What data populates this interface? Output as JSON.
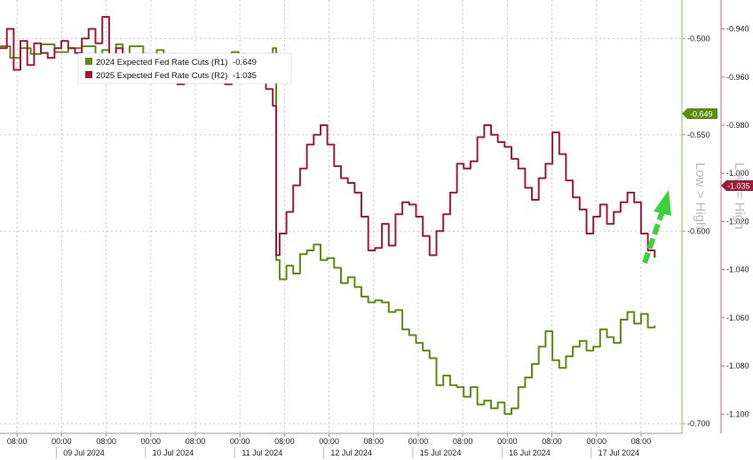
{
  "chart_data": {
    "type": "line",
    "title": "",
    "legend": {
      "placement": "top-left",
      "entries": [
        {
          "label": "2024 Expected Fed Rate Cuts (R1)",
          "value": "-0.649",
          "color": "#5a8c0e"
        },
        {
          "label": "2025 Expected Fed Rate Cuts (R2)",
          "value": "-1.035",
          "color": "#a3193a"
        }
      ]
    },
    "x_axis": {
      "time_row": [
        "08:00",
        "00:00",
        "08:00",
        "00:00",
        "08:00",
        "00:00",
        "08:00",
        "00:00",
        "08:00",
        "00:00",
        "08:00",
        "00:00",
        "08:00",
        "00:00",
        "08:00"
      ],
      "date_row": [
        "09 Jul 2024",
        "10 Jul 2024",
        "11 Jul 2024",
        "12 Jul 2024",
        "15 Jul 2024",
        "16 Jul 2024",
        "17 Jul 2024"
      ],
      "range": [
        0,
        100
      ]
    },
    "r1_axis": {
      "ticks": [
        "-0.700",
        "-0.600",
        "-0.550",
        "-0.500"
      ],
      "range": [
        -0.48,
        -0.705
      ]
    },
    "r2_axis": {
      "ticks": [
        "-1.100",
        "-1.080",
        "-1.060",
        "-1.040",
        "-1.020",
        "-1.000",
        "-0.980",
        "-0.960",
        "-0.940"
      ],
      "range": [
        -0.928,
        -1.108
      ]
    },
    "series": [
      {
        "name": "2024 Expected Fed Rate Cuts (R1)",
        "axis": "r1",
        "color": "#5a8c0e",
        "last_value": "-0.649",
        "x": [
          0,
          1.5,
          3,
          4.5,
          6,
          8,
          10,
          12,
          14,
          15,
          16,
          17,
          18,
          19,
          21,
          23,
          24,
          25,
          26,
          27,
          28,
          30,
          32,
          33,
          34,
          35,
          36,
          37,
          38,
          39,
          40,
          40.5,
          41,
          42,
          43,
          44,
          45,
          46,
          47,
          48,
          49,
          50,
          51,
          52,
          53,
          54,
          55,
          56,
          57,
          58,
          59,
          60,
          61,
          62,
          63,
          64,
          65,
          66,
          67,
          68,
          69,
          70,
          71,
          72,
          73,
          74,
          75,
          76,
          77,
          78,
          79,
          80,
          81,
          82,
          83,
          84,
          85,
          86,
          87,
          88,
          89,
          90,
          91,
          92,
          93,
          94,
          95,
          96
        ],
        "y": [
          -0.504,
          -0.51,
          -0.505,
          -0.508,
          -0.503,
          -0.507,
          -0.505,
          -0.504,
          -0.515,
          -0.506,
          -0.508,
          -0.503,
          -0.512,
          -0.504,
          -0.508,
          -0.506,
          -0.514,
          -0.508,
          -0.511,
          -0.513,
          -0.509,
          -0.513,
          -0.51,
          -0.512,
          -0.507,
          -0.508,
          -0.51,
          -0.512,
          -0.511,
          -0.508,
          -0.505,
          -0.615,
          -0.625,
          -0.618,
          -0.622,
          -0.612,
          -0.61,
          -0.607,
          -0.615,
          -0.614,
          -0.619,
          -0.627,
          -0.624,
          -0.629,
          -0.634,
          -0.637,
          -0.636,
          -0.637,
          -0.642,
          -0.641,
          -0.651,
          -0.654,
          -0.658,
          -0.662,
          -0.666,
          -0.68,
          -0.675,
          -0.68,
          -0.681,
          -0.686,
          -0.681,
          -0.69,
          -0.688,
          -0.692,
          -0.689,
          -0.695,
          -0.692,
          -0.681,
          -0.676,
          -0.669,
          -0.66,
          -0.652,
          -0.667,
          -0.671,
          -0.665,
          -0.66,
          -0.657,
          -0.662,
          -0.66,
          -0.651,
          -0.655,
          -0.658,
          -0.646,
          -0.642,
          -0.648,
          -0.643,
          -0.65,
          -0.649
        ]
      },
      {
        "name": "2025 Expected Fed Rate Cuts (R2)",
        "axis": "r2",
        "color": "#a3193a",
        "last_value": "-1.035",
        "x": [
          0,
          1,
          2,
          3,
          4,
          5,
          6,
          7,
          8,
          9,
          10,
          11,
          12,
          13,
          14,
          15,
          16,
          17,
          18,
          19,
          20,
          21,
          22,
          23,
          24,
          25,
          26,
          27,
          28,
          29,
          30,
          31,
          32,
          33,
          34,
          35,
          36,
          37,
          38,
          39,
          40,
          40.5,
          41,
          42,
          43,
          44,
          45,
          46,
          47,
          48,
          49,
          50,
          51,
          52,
          53,
          54,
          55,
          56,
          57,
          58,
          59,
          60,
          61,
          62,
          63,
          64,
          65,
          66,
          67,
          68,
          69,
          70,
          71,
          72,
          73,
          74,
          75,
          76,
          77,
          78,
          79,
          80,
          81,
          82,
          83,
          84,
          85,
          86,
          87,
          88,
          89,
          90,
          91,
          92,
          93,
          94,
          95,
          96
        ],
        "y": [
          -0.948,
          -0.94,
          -0.957,
          -0.945,
          -0.955,
          -0.946,
          -0.95,
          -0.952,
          -0.948,
          -0.945,
          -0.948,
          -0.95,
          -0.944,
          -0.94,
          -0.946,
          -0.935,
          -0.951,
          -0.948,
          -0.953,
          -0.951,
          -0.956,
          -0.954,
          -0.958,
          -0.958,
          -0.957,
          -0.96,
          -0.963,
          -0.957,
          -0.962,
          -0.959,
          -0.956,
          -0.961,
          -0.957,
          -0.963,
          -0.958,
          -0.96,
          -0.958,
          -0.961,
          -0.958,
          -0.965,
          -0.972,
          -1.034,
          -1.025,
          -1.016,
          -1.005,
          -0.998,
          -0.988,
          -0.984,
          -0.98,
          -0.988,
          -0.997,
          -1.002,
          -1.004,
          -1.008,
          -1.018,
          -1.032,
          -1.031,
          -1.021,
          -1.03,
          -1.017,
          -1.012,
          -1.013,
          -1.018,
          -1.026,
          -1.034,
          -1.024,
          -1.017,
          -1.008,
          -0.996,
          -0.998,
          -0.995,
          -0.985,
          -0.98,
          -0.984,
          -0.987,
          -0.989,
          -0.994,
          -0.998,
          -1.006,
          -1.011,
          -1.002,
          -0.996,
          -0.983,
          -0.992,
          -1.003,
          -1.01,
          -1.015,
          -1.025,
          -1.018,
          -1.013,
          -1.021,
          -1.016,
          -1.012,
          -1.008,
          -1.012,
          -1.025,
          -1.032,
          -1.035
        ]
      }
    ],
    "annotations": [
      {
        "text": "Low > High",
        "color": "#b9b9b9"
      },
      {
        "text": "Low = High",
        "color": "#b9b9b9"
      }
    ],
    "arrow_color": "#3bd23b",
    "grid": true
  }
}
